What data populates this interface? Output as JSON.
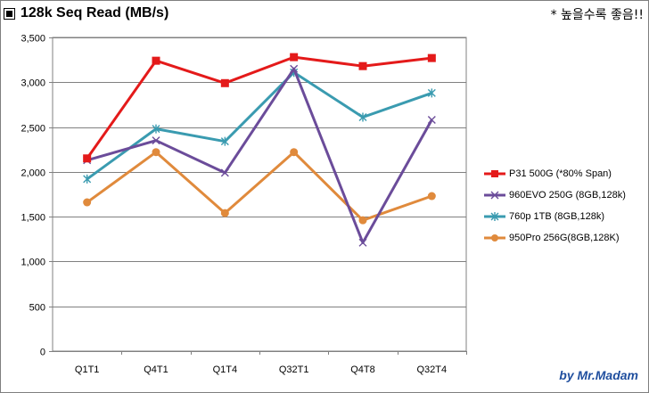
{
  "header": {
    "title": "128k Seq Read (MB/s)",
    "note": "* 높을수록 좋음!!"
  },
  "watermark": "by Mr.Madam",
  "chart_data": {
    "type": "line",
    "categories": [
      "Q1T1",
      "Q4T1",
      "Q1T4",
      "Q32T1",
      "Q4T8",
      "Q32T4"
    ],
    "ylim": [
      0,
      3500
    ],
    "yticks": [
      0,
      500,
      1000,
      1500,
      2000,
      2500,
      3000,
      3500
    ],
    "ytick_labels": [
      "0",
      "500",
      "1,000",
      "1,500",
      "2,000",
      "2,500",
      "3,000",
      "3,500"
    ],
    "grid": "horizontal",
    "legend_position": "right",
    "series": [
      {
        "name": "P31 500G (*80% Span)",
        "color": "#e41a1a",
        "marker": "square",
        "values": [
          2150,
          3240,
          2990,
          3280,
          3180,
          3270
        ]
      },
      {
        "name": "960EVO 250G (8GB,128k)",
        "color": "#6b4c9a",
        "marker": "x",
        "values": [
          2130,
          2350,
          1990,
          3150,
          1210,
          2580
        ]
      },
      {
        "name": "760p 1TB (8GB,128k)",
        "color": "#3a9bb0",
        "marker": "star",
        "values": [
          1920,
          2480,
          2340,
          3110,
          2610,
          2880
        ]
      },
      {
        "name": "950Pro 256G(8GB,128K)",
        "color": "#e08a3c",
        "marker": "circle",
        "values": [
          1660,
          2220,
          1540,
          2220,
          1460,
          1730
        ]
      }
    ]
  }
}
